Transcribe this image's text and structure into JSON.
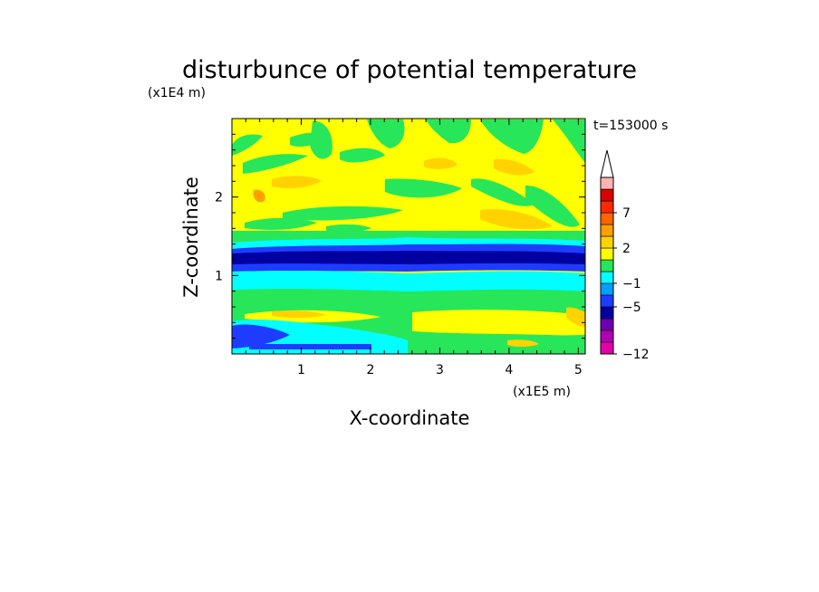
{
  "chart_data": {
    "type": "heatmap",
    "title": "disturbunce of potential temperature",
    "xlabel": "X-coordinate",
    "ylabel": "Z-coordinate",
    "x_unit": "(x1E5 m)",
    "y_unit": "(x1E4 m)",
    "time_label": "t=153000 s",
    "xlim": [
      0,
      5.1
    ],
    "ylim": [
      0,
      3.0
    ],
    "x_ticks": [
      "1",
      "2",
      "3",
      "4",
      "5"
    ],
    "y_ticks": [
      "1",
      "2"
    ],
    "colorbar": {
      "labels": [
        "7",
        "2",
        "−1",
        "−5",
        "−12"
      ],
      "levels": [
        "−12",
        "−11",
        "−9",
        "−7",
        "−5",
        "−3",
        "−1",
        "0",
        "1",
        "2",
        "4",
        "5",
        "7",
        "9",
        "11"
      ],
      "colors": [
        "#e600aa",
        "#b400b4",
        "#6e00b4",
        "#0000a0",
        "#1e3cff",
        "#00a0ff",
        "#00ffff",
        "#28e65a",
        "#ffff00",
        "#ffd200",
        "#ffa000",
        "#ff6400",
        "#ff2800",
        "#dc0000",
        "#ffb4b4",
        "#ffffff"
      ]
    },
    "field_bands": [
      {
        "z_range": [
          0.0,
          0.12
        ],
        "level": "−5 to −1"
      },
      {
        "z_range": [
          0.12,
          0.4
        ],
        "level": "0 to 2"
      },
      {
        "z_range": [
          0.4,
          0.75
        ],
        "level": "−1 to 0"
      },
      {
        "z_range": [
          0.75,
          0.95
        ],
        "level": "−3 to −1"
      },
      {
        "z_range": [
          0.95,
          1.35
        ],
        "level": "−7 to −5"
      },
      {
        "z_range": [
          1.35,
          1.5
        ],
        "level": "−1 to 0"
      },
      {
        "z_range": [
          1.5,
          3.0
        ],
        "level": "0 to 2"
      }
    ]
  }
}
